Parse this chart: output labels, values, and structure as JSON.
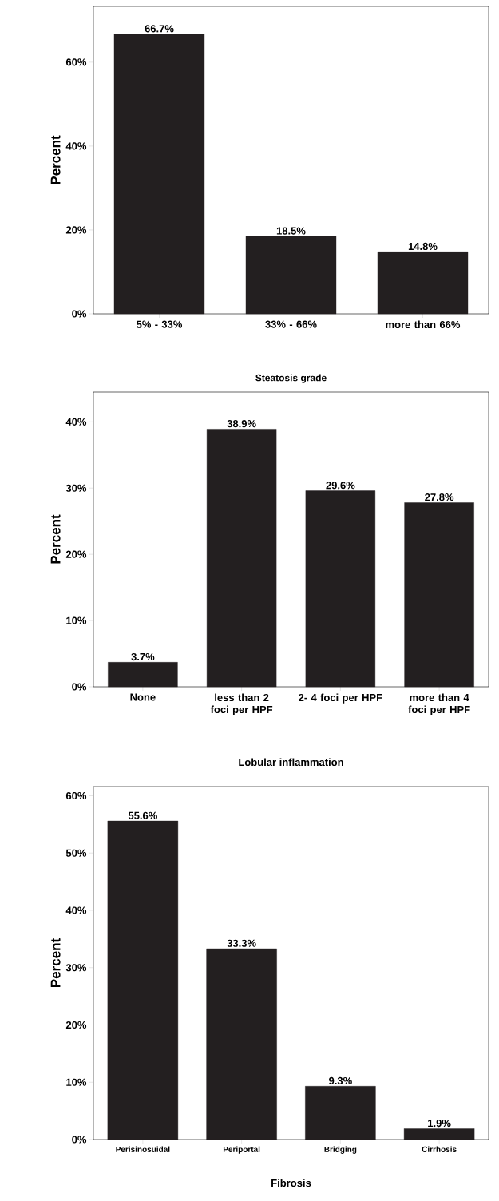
{
  "chart_data": [
    {
      "type": "bar",
      "xlabel": "Steatosis grade",
      "ylabel": "Percent",
      "categories": [
        "5% - 33%",
        "33% - 66%",
        "more than 66%"
      ],
      "values": [
        66.7,
        18.5,
        14.8
      ],
      "value_labels": [
        "66.7%",
        "18.5%",
        "14.8%"
      ],
      "color": "#231f20",
      "ylim": [
        0,
        73.3
      ],
      "yticks": [
        {
          "value": 0,
          "label": "0%"
        },
        {
          "value": 20,
          "label": "20%"
        },
        {
          "value": 40,
          "label": "40%"
        },
        {
          "value": 60,
          "label": "60%"
        }
      ],
      "grid": false
    },
    {
      "type": "bar",
      "xlabel": "Lobular inflammation",
      "ylabel": "Percent",
      "categories": [
        "None",
        "less than 2 foci per HPF",
        "2- 4 foci per HPF",
        "more than 4 foci per HPF"
      ],
      "values": [
        3.7,
        38.9,
        29.6,
        27.8
      ],
      "value_labels": [
        "3.7%",
        "38.9%",
        "29.6%",
        "27.8%"
      ],
      "color": "#231f20",
      "ylim": [
        0,
        44.5
      ],
      "yticks": [
        {
          "value": 0,
          "label": "0%"
        },
        {
          "value": 10,
          "label": "10%"
        },
        {
          "value": 20,
          "label": "20%"
        },
        {
          "value": 30,
          "label": "30%"
        },
        {
          "value": 40,
          "label": "40%"
        }
      ],
      "grid": false
    },
    {
      "type": "bar",
      "xlabel": "Fibrosis",
      "ylabel": "Percent",
      "categories": [
        "Perisinosuidal",
        "Periportal",
        "Bridging",
        "Cirrhosis"
      ],
      "values": [
        55.6,
        33.3,
        9.3,
        1.9
      ],
      "value_labels": [
        "55.6%",
        "33.3%",
        "9.3%",
        "1.9%"
      ],
      "color": "#231f20",
      "ylim": [
        0,
        61.6
      ],
      "yticks": [
        {
          "value": 0,
          "label": "0%"
        },
        {
          "value": 10,
          "label": "10%"
        },
        {
          "value": 20,
          "label": "20%"
        },
        {
          "value": 30,
          "label": "30%"
        },
        {
          "value": 40,
          "label": "40%"
        },
        {
          "value": 50,
          "label": "50%"
        },
        {
          "value": 60,
          "label": "60%"
        }
      ],
      "grid": false
    }
  ]
}
